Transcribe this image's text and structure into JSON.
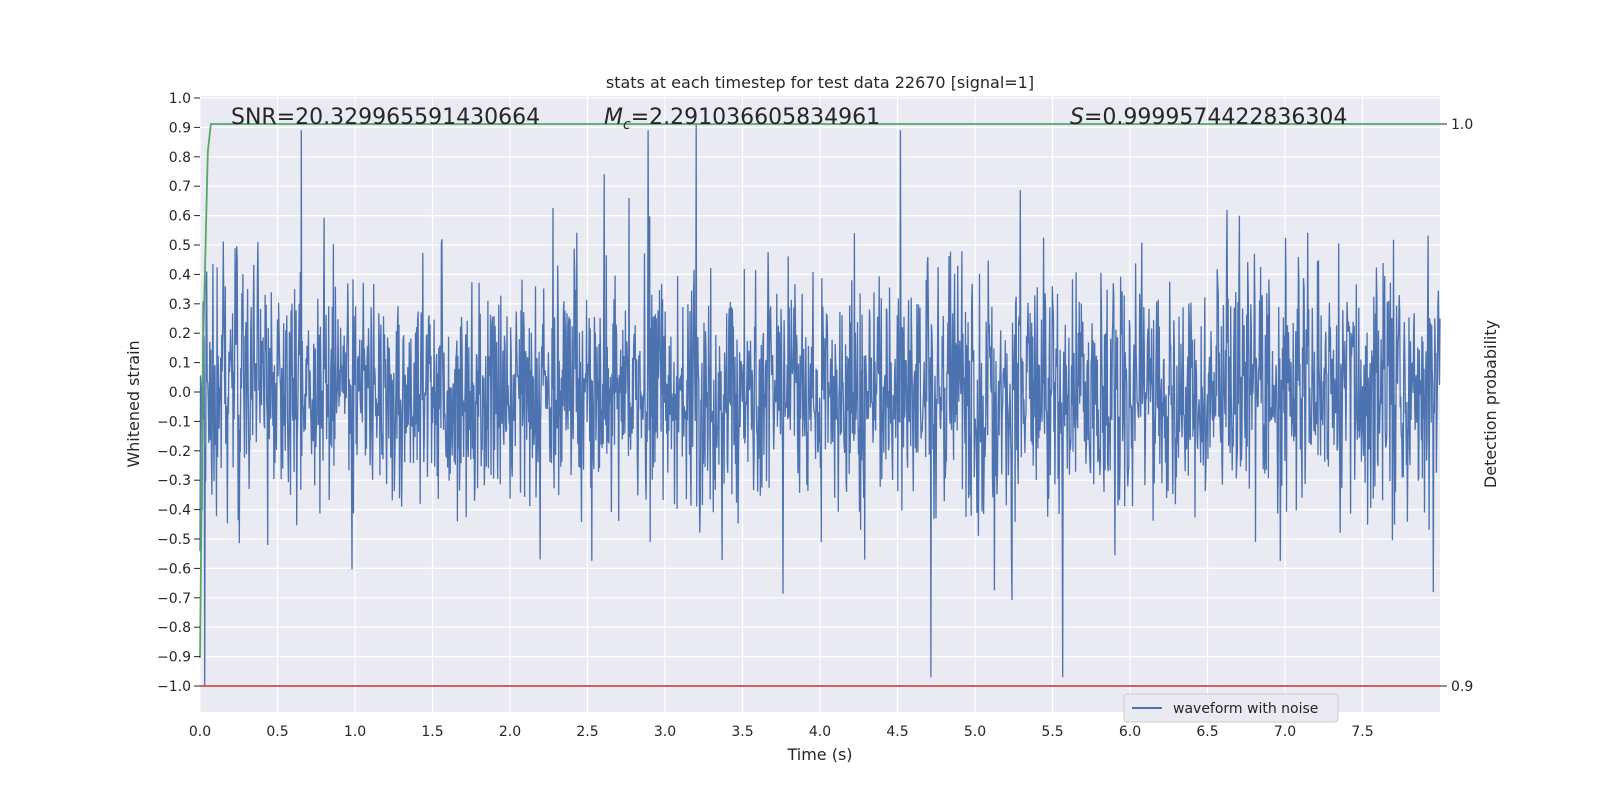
{
  "chart_data": {
    "type": "line",
    "title": "stats at each timestep for test data 22670 [signal=1]",
    "xlabel": "Time (s)",
    "ylabel": "Whitened strain",
    "y2label": "Detection probability",
    "xlim": [
      0,
      8
    ],
    "ylim": [
      -1.0,
      1.0
    ],
    "y2lim": [
      0.9,
      1.0
    ],
    "x_ticks": [
      "0.0",
      "0.5",
      "1.0",
      "1.5",
      "2.0",
      "2.5",
      "3.0",
      "3.5",
      "4.0",
      "4.5",
      "5.0",
      "5.5",
      "6.0",
      "6.5",
      "7.0",
      "7.5"
    ],
    "y_ticks": [
      "−1.0",
      "−0.9",
      "−0.8",
      "−0.7",
      "−0.6",
      "−0.5",
      "−0.4",
      "−0.3",
      "−0.2",
      "−0.1",
      "0.0",
      "0.1",
      "0.2",
      "0.3",
      "0.4",
      "0.5",
      "0.6",
      "0.7",
      "0.8",
      "0.9",
      "1.0"
    ],
    "y2_ticks": [
      "0.9",
      "1.0"
    ],
    "grid": true,
    "legend_position": "bottom-right",
    "annotations": {
      "snr": "SNR=20.329965591430664",
      "mc_symbol": "M",
      "mc_sub": "c",
      "mc_value": "=2.291036605834961",
      "s_symbol": "S",
      "s_value": "=0.9999574422836304"
    },
    "series": [
      {
        "name": "waveform with noise",
        "color": "#4c72b0",
        "description_values": "dense noise centered at 0, amplitude about ±0.3 typical, peaks to about ±0.9",
        "x_range": [
          0,
          8
        ],
        "peak_max": 0.91,
        "peak_min": -1.0
      },
      {
        "name": "",
        "color": "#55a868",
        "axis": "y2",
        "x": [
          0.0,
          0.02,
          0.05,
          0.07,
          8.0
        ],
        "y": [
          0.905,
          0.96,
          0.995,
          1.0,
          1.0
        ]
      },
      {
        "name": "",
        "color": "#c44e52",
        "axis": "y2",
        "x": [
          0.0,
          8.0
        ],
        "y": [
          0.9,
          0.9
        ]
      }
    ]
  }
}
